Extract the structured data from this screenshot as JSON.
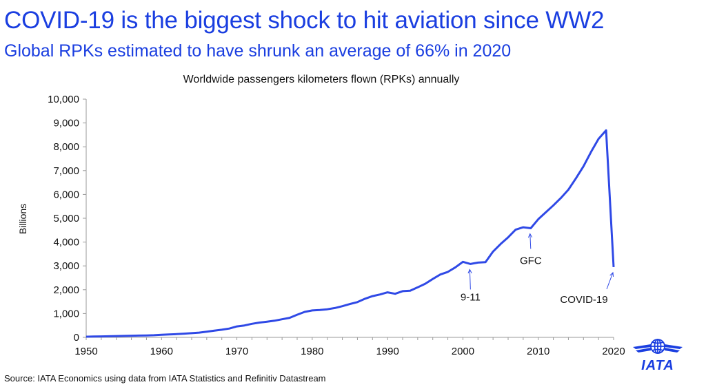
{
  "title": "COVID-19 is the biggest shock to hit aviation since WW2",
  "subtitle": "Global RPKs estimated to have shrunk an average of 66% in 2020",
  "source": "Source: IATA Economics using data from IATA Statistics and Refinitiv Datastream",
  "logo_text": "IATA",
  "colors": {
    "accent": "#1a3ee0",
    "line": "#2f49e6"
  },
  "chart_data": {
    "type": "line",
    "title": "Worldwide passengers kilometers flown (RPKs) annually",
    "xlabel": "",
    "ylabel": "Billions",
    "xlim": [
      1950,
      2020
    ],
    "ylim": [
      0,
      10000
    ],
    "x_ticks": [
      1950,
      1960,
      1970,
      1980,
      1990,
      2000,
      2010,
      2020
    ],
    "y_ticks": [
      0,
      1000,
      2000,
      3000,
      4000,
      5000,
      6000,
      7000,
      8000,
      9000,
      10000
    ],
    "y_tick_labels": [
      "0",
      "1,000",
      "2,000",
      "3,000",
      "4,000",
      "5,000",
      "6,000",
      "7,000",
      "8,000",
      "9,000",
      "10,000"
    ],
    "grid": false,
    "legend": "none",
    "series": [
      {
        "x": [
          1950,
          1951,
          1952,
          1953,
          1954,
          1955,
          1956,
          1957,
          1958,
          1959,
          1960,
          1961,
          1962,
          1963,
          1964,
          1965,
          1966,
          1967,
          1968,
          1969,
          1970,
          1971,
          1972,
          1973,
          1974,
          1975,
          1976,
          1977,
          1978,
          1979,
          1980,
          1981,
          1982,
          1983,
          1984,
          1985,
          1986,
          1987,
          1988,
          1989,
          1990,
          1991,
          1992,
          1993,
          1994,
          1995,
          1996,
          1997,
          1998,
          1999,
          2000,
          2001,
          2002,
          2003,
          2004,
          2005,
          2006,
          2007,
          2008,
          2009,
          2010,
          2011,
          2012,
          2013,
          2014,
          2015,
          2016,
          2017,
          2018,
          2019,
          2020
        ],
        "values": [
          30,
          35,
          40,
          45,
          55,
          60,
          70,
          75,
          80,
          90,
          110,
          120,
          135,
          155,
          175,
          200,
          240,
          280,
          320,
          370,
          460,
          500,
          570,
          620,
          660,
          700,
          760,
          820,
          950,
          1070,
          1130,
          1150,
          1180,
          1230,
          1310,
          1400,
          1480,
          1620,
          1730,
          1800,
          1890,
          1830,
          1940,
          1960,
          2100,
          2250,
          2450,
          2640,
          2750,
          2940,
          3170,
          3080,
          3140,
          3160,
          3600,
          3920,
          4200,
          4520,
          4620,
          4580,
          4960,
          5250,
          5540,
          5850,
          6200,
          6680,
          7180,
          7780,
          8330,
          8690,
          2950
        ]
      }
    ],
    "annotations": [
      {
        "text": "9-11",
        "x": 2001,
        "y": 3080
      },
      {
        "text": "GFC",
        "x": 2009,
        "y": 4580
      },
      {
        "text": "COVID-19",
        "x": 2020,
        "y": 2950
      }
    ]
  }
}
